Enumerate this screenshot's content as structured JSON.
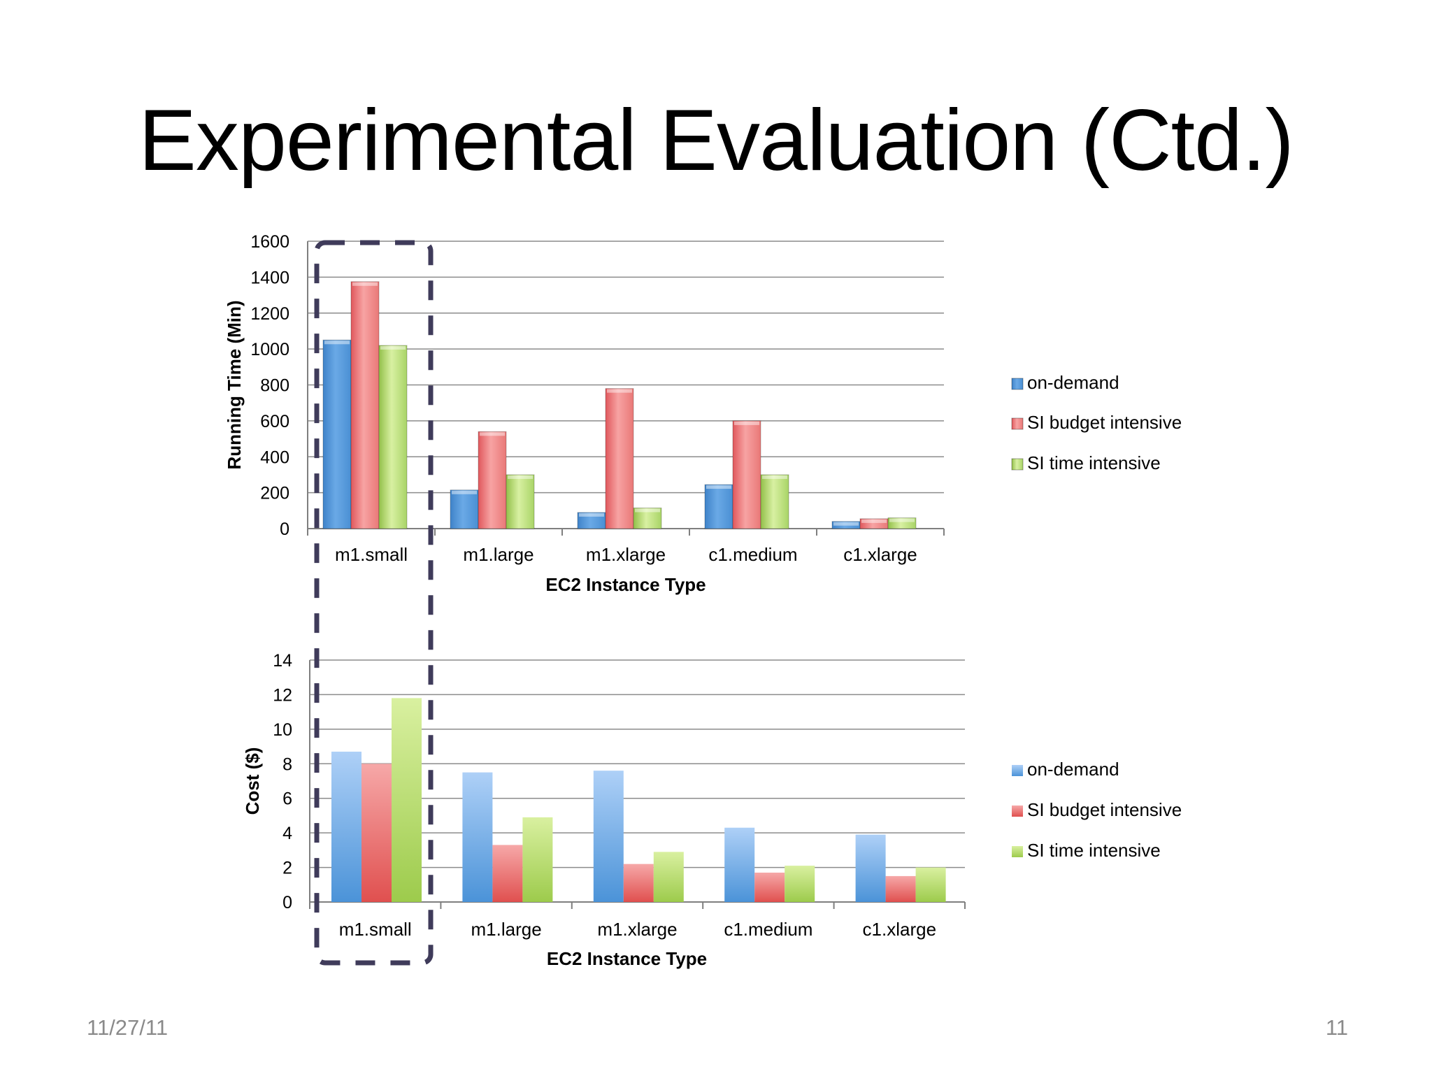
{
  "slide": {
    "title": "Experimental Evaluation (Ctd.)",
    "date": "11/27/11",
    "page_number": "11"
  },
  "colors": {
    "on_demand": "#5b9bd5",
    "si_budget": "#e8696b",
    "si_time": "#a6cf5a",
    "highlight_box": "#3f3b5a"
  },
  "chart_data": [
    {
      "type": "bar",
      "style": "3d-bevel",
      "categories": [
        "m1.small",
        "m1.large",
        "m1.xlarge",
        "c1.medium",
        "c1.xlarge"
      ],
      "series": [
        {
          "name": "on-demand",
          "values": [
            1050,
            215,
            90,
            245,
            40
          ]
        },
        {
          "name": "SI budget intensive",
          "values": [
            1375,
            540,
            780,
            600,
            55
          ]
        },
        {
          "name": "SI time intensive",
          "values": [
            1020,
            300,
            115,
            300,
            60
          ]
        }
      ],
      "xlabel": "EC2 Instance Type",
      "ylabel": "Running Time (Min)",
      "ylim": [
        0,
        1600
      ],
      "yticks": [
        "0",
        "200",
        "400",
        "600",
        "800",
        "1000",
        "1200",
        "1400",
        "1600"
      ],
      "grid": true,
      "legend": "right"
    },
    {
      "type": "bar",
      "style": "gradient",
      "categories": [
        "m1.small",
        "m1.large",
        "m1.xlarge",
        "c1.medium",
        "c1.xlarge"
      ],
      "series": [
        {
          "name": "on-demand",
          "values": [
            8.7,
            7.5,
            7.6,
            4.3,
            3.9
          ]
        },
        {
          "name": "SI budget intensive",
          "values": [
            8.0,
            3.3,
            2.2,
            1.7,
            1.5
          ]
        },
        {
          "name": "SI time intensive",
          "values": [
            11.8,
            4.9,
            2.9,
            2.1,
            2.0
          ]
        }
      ],
      "xlabel": "EC2  Instance Type",
      "ylabel": "Cost ($)",
      "ylim": [
        0,
        14
      ],
      "yticks": [
        "0",
        "2",
        "4",
        "6",
        "8",
        "10",
        "12",
        "14"
      ],
      "grid": true,
      "legend": "right"
    }
  ]
}
